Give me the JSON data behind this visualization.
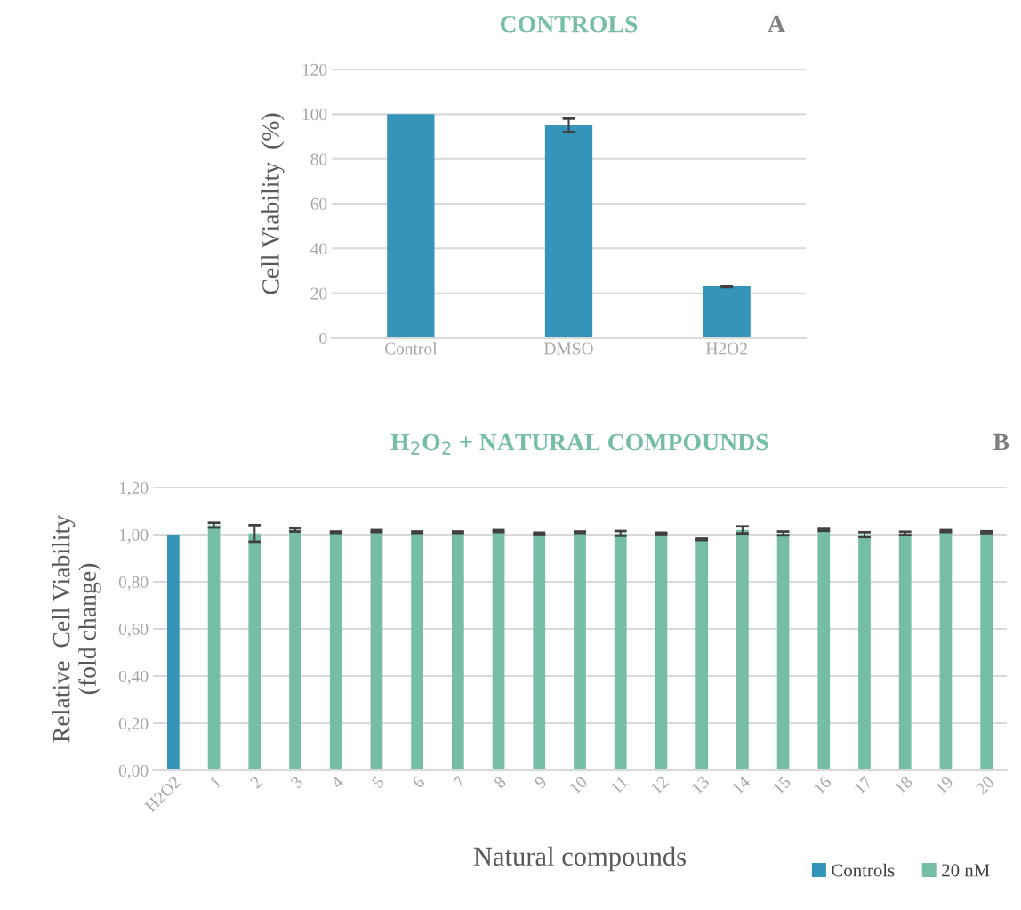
{
  "chart_data": [
    {
      "type": "bar",
      "title": "CONTROLS",
      "ylabel": "Cell Viability  (%)",
      "annotations": [
        "A"
      ],
      "categories": [
        "Control",
        "DMSO",
        "H2O2"
      ],
      "series": [
        {
          "color": "#3494ba",
          "values": [
            100,
            95,
            23
          ],
          "errors": [
            null,
            3,
            0.3
          ]
        }
      ],
      "ylim": [
        0,
        120
      ],
      "yticks": [
        0,
        20,
        40,
        60,
        80,
        100,
        120
      ],
      "grid": "y",
      "legend": false
    },
    {
      "type": "bar",
      "title": "H$_{2}$O$_{2}$ + NATURAL COMPOUNDS",
      "xlabel": "Natural compounds",
      "ylabel": "Relative  Cell Viability\n(fold change)",
      "annotations": [
        "B"
      ],
      "categories": [
        "H2O2",
        "1",
        "2",
        "3",
        "4",
        "5",
        "6",
        "7",
        "8",
        "9",
        "10",
        "11",
        "12",
        "13",
        "14",
        "15",
        "16",
        "17",
        "18",
        "19",
        "20"
      ],
      "series": [
        {
          "name": "Controls",
          "color": "#3494ba",
          "values": [
            1.0,
            null,
            null,
            null,
            null,
            null,
            null,
            null,
            null,
            null,
            null,
            null,
            null,
            null,
            null,
            null,
            null,
            null,
            null,
            null,
            null
          ],
          "errors": [
            null,
            null,
            null,
            null,
            null,
            null,
            null,
            null,
            null,
            null,
            null,
            null,
            null,
            null,
            null,
            null,
            null,
            null,
            null,
            null,
            null
          ]
        },
        {
          "name": "20 nM",
          "color": "#75bda7",
          "values": [
            null,
            1.04,
            1.005,
            1.02,
            1.01,
            1.015,
            1.01,
            1.01,
            1.015,
            1.005,
            1.01,
            1.005,
            1.005,
            0.98,
            1.02,
            1.005,
            1.02,
            1.0,
            1.005,
            1.015,
            1.01
          ],
          "errors": [
            null,
            0.01,
            0.035,
            0.007,
            0.003,
            0.004,
            0.003,
            0.003,
            0.004,
            0.003,
            0.003,
            0.01,
            0.003,
            0.003,
            0.015,
            0.008,
            0.004,
            0.01,
            0.007,
            0.004,
            0.004
          ]
        }
      ],
      "ylim": [
        0,
        1.2
      ],
      "yticks": [
        {
          "value": 0,
          "label": "0,00"
        },
        {
          "value": 0.2,
          "label": "0,20"
        },
        {
          "value": 0.4,
          "label": "0,40"
        },
        {
          "value": 0.6,
          "label": "0,60"
        },
        {
          "value": 0.8,
          "label": "0,80"
        },
        {
          "value": 1.0,
          "label": "1,00"
        },
        {
          "value": 1.2,
          "label": "1,20"
        }
      ],
      "grid": "y",
      "legend": "bottom right"
    }
  ]
}
